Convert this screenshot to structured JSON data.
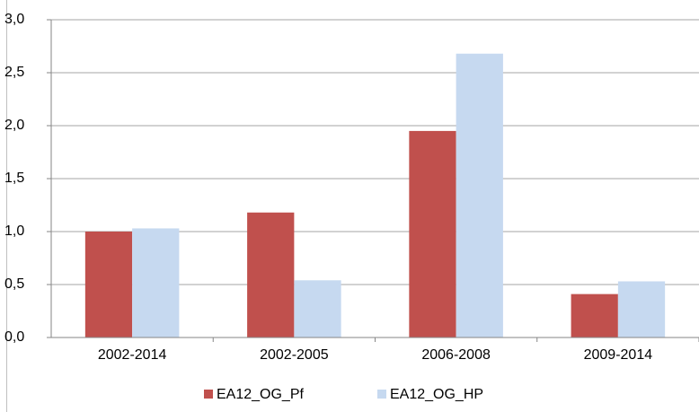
{
  "chart_data": {
    "type": "bar",
    "categories": [
      "2002-2014",
      "2002-2005",
      "2006-2008",
      "2009-2014"
    ],
    "series": [
      {
        "name": "EA12_OG_Pf",
        "color": "#c0504d",
        "values": [
          1.0,
          1.18,
          1.95,
          0.41
        ]
      },
      {
        "name": "EA12_OG_HP",
        "color": "#c6d9f0",
        "values": [
          1.03,
          0.54,
          2.68,
          0.53
        ]
      }
    ],
    "ylim": [
      0,
      3
    ],
    "yticks": [
      {
        "value": 0,
        "label": "0,0"
      },
      {
        "value": 0.5,
        "label": "0,5"
      },
      {
        "value": 1,
        "label": "1,0"
      },
      {
        "value": 1.5,
        "label": "1,5"
      },
      {
        "value": 2,
        "label": "2,0"
      },
      {
        "value": 2.5,
        "label": "2,5"
      },
      {
        "value": 3,
        "label": "3,0"
      }
    ],
    "grid": true,
    "legend": "bottom"
  }
}
